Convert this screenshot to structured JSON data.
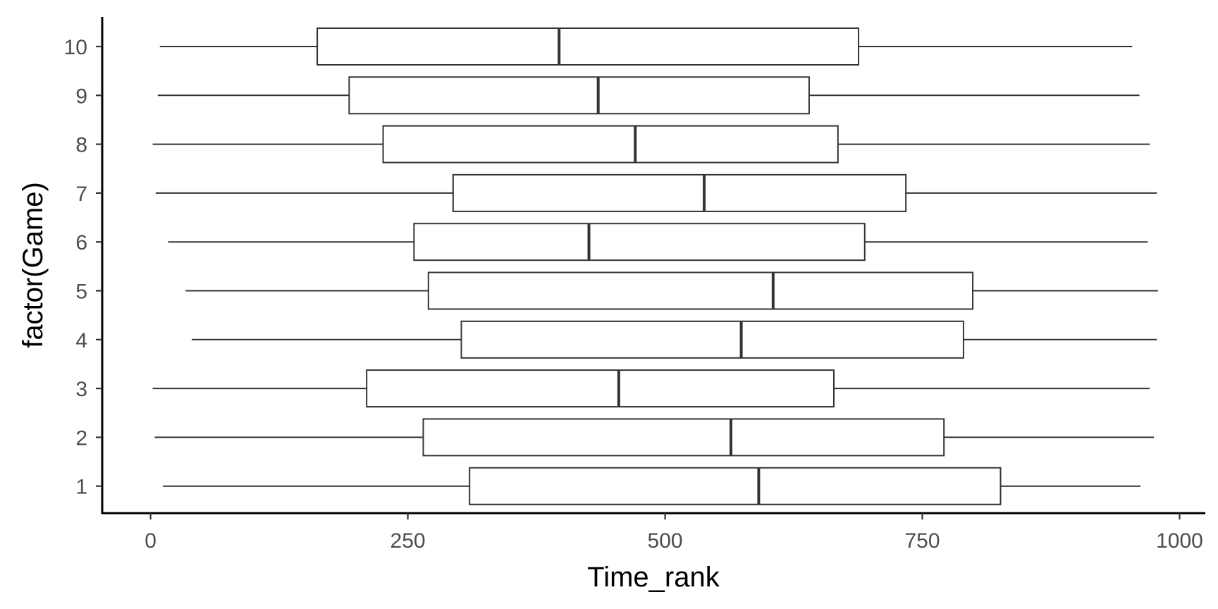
{
  "chart_data": {
    "type": "boxplot",
    "orientation": "horizontal",
    "xlabel": "Time_rank",
    "ylabel": "factor(Game)",
    "x_ticks": [
      0,
      250,
      500,
      750,
      1000
    ],
    "x_tick_labels": [
      "0",
      "250",
      "500",
      "750",
      "1000"
    ],
    "xlim": [
      -47,
      1025
    ],
    "categories": [
      "1",
      "2",
      "3",
      "4",
      "5",
      "6",
      "7",
      "8",
      "9",
      "10"
    ],
    "boxes": [
      {
        "category": "1",
        "min": 12,
        "q1": 310,
        "median": 591,
        "q3": 826,
        "max": 962
      },
      {
        "category": "2",
        "min": 4,
        "q1": 265,
        "median": 564,
        "q3": 771,
        "max": 975
      },
      {
        "category": "3",
        "min": 2,
        "q1": 210,
        "median": 455,
        "q3": 664,
        "max": 971
      },
      {
        "category": "4",
        "min": 40,
        "q1": 302,
        "median": 574,
        "q3": 790,
        "max": 978
      },
      {
        "category": "5",
        "min": 34,
        "q1": 270,
        "median": 605,
        "q3": 799,
        "max": 979
      },
      {
        "category": "6",
        "min": 17,
        "q1": 256,
        "median": 426,
        "q3": 694,
        "max": 969
      },
      {
        "category": "7",
        "min": 5,
        "q1": 294,
        "median": 538,
        "q3": 734,
        "max": 978
      },
      {
        "category": "8",
        "min": 2,
        "q1": 226,
        "median": 471,
        "q3": 668,
        "max": 971
      },
      {
        "category": "9",
        "min": 7,
        "q1": 193,
        "median": 435,
        "q3": 640,
        "max": 961
      },
      {
        "category": "10",
        "min": 9,
        "q1": 162,
        "median": 397,
        "q3": 688,
        "max": 954
      }
    ],
    "grid": false,
    "legend": "none"
  }
}
